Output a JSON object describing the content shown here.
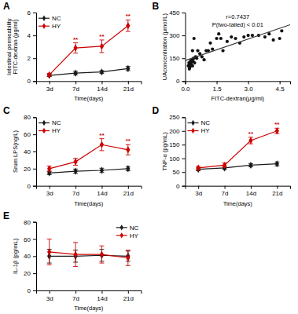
{
  "chart_data": [
    {
      "type": "line",
      "title": "A",
      "xlabel": "Time(days)",
      "ylabel": "Intestinal permeability\nFITC-dextran (μg/ml)",
      "categories": [
        "3d",
        "7d",
        "14d",
        "21d"
      ],
      "series": [
        {
          "name": "NC",
          "color": "#1a1a1a",
          "marker": "diamond",
          "values": [
            0.5,
            0.7,
            0.8,
            1.1
          ],
          "errors": [
            0.1,
            0.15,
            0.12,
            0.18
          ]
        },
        {
          "name": "HY",
          "color": "#cc0000",
          "marker": "diamond",
          "values": [
            0.55,
            2.9,
            3.05,
            4.85
          ],
          "errors": [
            0.12,
            0.45,
            0.55,
            0.5
          ]
        }
      ],
      "ylim": [
        0,
        6
      ],
      "yticks": [
        0,
        2,
        4,
        6
      ],
      "annotations": [
        {
          "text": "**",
          "series": "HY",
          "category": "7d"
        },
        {
          "text": "**",
          "series": "HY",
          "category": "14d"
        },
        {
          "text": "**",
          "series": "HY",
          "category": "21d"
        }
      ],
      "legend": "upper left",
      "grid": false
    },
    {
      "type": "scatter",
      "title": "B",
      "xlabel": "FITC-dextran(μg/ml)",
      "ylabel": "UAconcentration (μmol/L)",
      "series": [
        {
          "type": "scatter",
          "color": "#111111",
          "marker": "circle",
          "x": [
            0.15,
            0.18,
            0.2,
            0.22,
            0.22,
            0.25,
            0.25,
            0.28,
            0.3,
            0.32,
            0.35,
            0.35,
            0.38,
            0.4,
            0.42,
            0.45,
            0.5,
            0.55,
            0.6,
            0.7,
            0.8,
            0.9,
            1.0,
            1.1,
            1.2,
            1.3,
            1.5,
            1.6,
            1.7,
            1.8,
            2.0,
            2.2,
            2.4,
            2.6,
            2.8,
            3.0,
            3.2,
            3.5,
            3.8,
            4.0,
            4.2,
            4.5,
            4.6
          ],
          "values": [
            100,
            120,
            80,
            90,
            110,
            130,
            100,
            115,
            125,
            140,
            200,
            100,
            130,
            150,
            280,
            120,
            160,
            150,
            200,
            180,
            160,
            140,
            200,
            200,
            250,
            210,
            280,
            310,
            280,
            200,
            260,
            290,
            280,
            250,
            290,
            300,
            300,
            300,
            290,
            310,
            270,
            280,
            330
          ]
        },
        {
          "type": "line",
          "color": "#333333",
          "x": [
            0,
            5
          ],
          "values": [
            134.9608,
            370.4784
          ]
        }
      ],
      "xlim": [
        0,
        5
      ],
      "xticks": [
        {
          "value": 0,
          "label": "0.0"
        },
        1.5,
        {
          "value": 3,
          "label": "3.0"
        },
        4.5
      ],
      "ylim": [
        0,
        450
      ],
      "yticks": [
        0,
        150,
        300,
        450
      ],
      "annotations": [
        {
          "text": "r=0.7437"
        },
        {
          "text": "P(two-tailed) < 0.01"
        }
      ],
      "grid": false
    },
    {
      "type": "line",
      "title": "C",
      "xlabel": "Time(days)",
      "ylabel": "Srum LPS(ng/L)",
      "categories": [
        "3d",
        "7d",
        "14d",
        "21d"
      ],
      "series": [
        {
          "name": "NC",
          "color": "#1a1a1a",
          "marker": "diamond",
          "values": [
            15,
            17,
            18,
            20
          ],
          "errors": [
            2,
            2.5,
            2.5,
            2.5
          ]
        },
        {
          "name": "HY",
          "color": "#cc0000",
          "marker": "diamond",
          "values": [
            20,
            28,
            48,
            42
          ],
          "errors": [
            3,
            4,
            7,
            6
          ]
        }
      ],
      "ylim": [
        0,
        80
      ],
      "yticks": [
        0,
        20,
        40,
        60,
        80
      ],
      "annotations": [
        {
          "text": "**",
          "series": "HY",
          "category": "14d"
        },
        {
          "text": "**",
          "series": "HY",
          "category": "21d"
        }
      ],
      "legend": "upper left",
      "grid": false
    },
    {
      "type": "line",
      "title": "D",
      "xlabel": "Time(days)",
      "ylabel": "TNF-α (pg/mL)",
      "categories": [
        "3d",
        "7d",
        "14d",
        "21d"
      ],
      "series": [
        {
          "name": "NC",
          "color": "#1a1a1a",
          "marker": "diamond",
          "values": [
            60,
            65,
            75,
            80
          ],
          "errors": [
            5,
            6,
            6,
            7
          ]
        },
        {
          "name": "HY",
          "color": "#cc0000",
          "marker": "diamond",
          "values": [
            65,
            75,
            165,
            200
          ],
          "errors": [
            6,
            8,
            12,
            10
          ]
        }
      ],
      "ylim": [
        0,
        250
      ],
      "yticks": [
        0,
        50,
        100,
        150,
        200,
        250
      ],
      "annotations": [
        {
          "text": "**",
          "series": "HY",
          "category": "14d"
        },
        {
          "text": "**",
          "series": "HY",
          "category": "21d"
        }
      ],
      "legend": "upper left",
      "grid": false
    },
    {
      "type": "line",
      "title": "E",
      "xlabel": "Time(days)",
      "ylabel": "IL-1β (pg/mL)",
      "categories": [
        "3d",
        "7d",
        "14d",
        "21d"
      ],
      "series": [
        {
          "name": "NC",
          "color": "#1a1a1a",
          "marker": "diamond",
          "values": [
            40,
            40,
            41,
            40
          ],
          "errors": [
            8,
            7,
            7,
            6
          ]
        },
        {
          "name": "HY",
          "color": "#cc0000",
          "marker": "diamond",
          "values": [
            45,
            42,
            42,
            38
          ],
          "errors": [
            15,
            14,
            10,
            9
          ]
        }
      ],
      "ylim": [
        0,
        80
      ],
      "yticks": [
        0,
        20,
        40,
        60,
        80
      ],
      "legend": "upper right",
      "grid": false
    }
  ]
}
